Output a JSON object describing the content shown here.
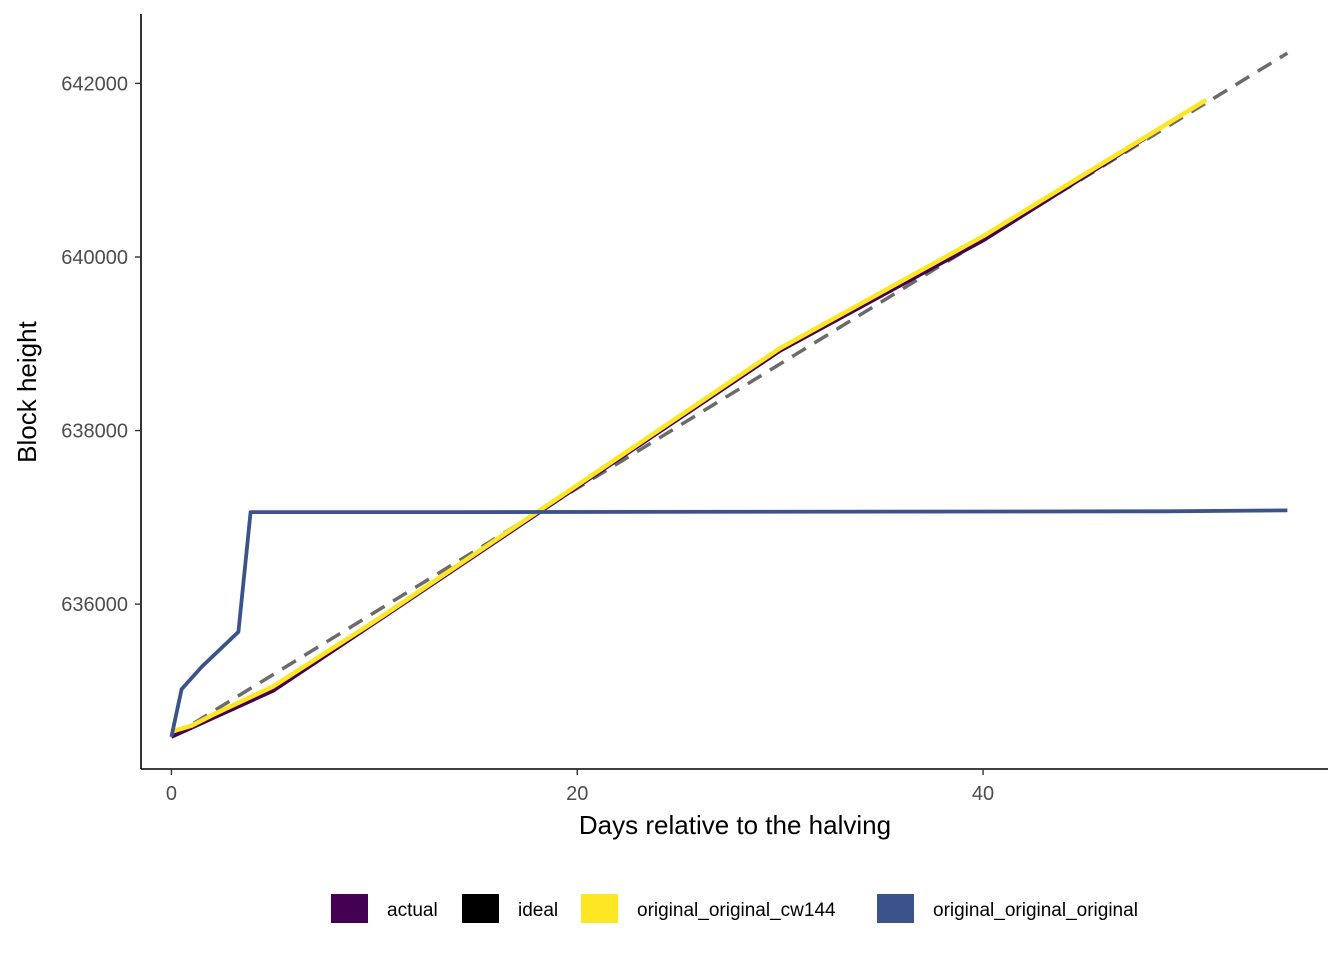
{
  "chart_data": {
    "type": "line",
    "title": "",
    "xlabel": "Days relative to the halving",
    "ylabel": "Block height",
    "xlim": [
      -1.5,
      57
    ],
    "ylim": [
      634100,
      642800
    ],
    "x_ticks": [
      0,
      20,
      40
    ],
    "y_ticks": [
      636000,
      638000,
      640000,
      642000
    ],
    "grid": false,
    "legend_position": "bottom",
    "series": [
      {
        "name": "actual",
        "color": "#440154",
        "dashed": false,
        "x": [
          0,
          5,
          10,
          20,
          30,
          40,
          48
        ],
        "y": [
          634470,
          635000,
          635780,
          637350,
          638920,
          640190,
          641370
        ]
      },
      {
        "name": "ideal",
        "color": "#000000",
        "dashed": true,
        "dash_color": "#6b6b6b",
        "x": [
          0,
          55
        ],
        "y": [
          634470,
          642350
        ]
      },
      {
        "name": "original_original_cw144",
        "color": "#fde725",
        "dashed": false,
        "x": [
          0,
          1,
          2,
          5,
          10,
          20,
          30,
          40,
          51
        ],
        "y": [
          634530,
          634600,
          634720,
          635050,
          635800,
          637370,
          638950,
          640240,
          641810
        ]
      },
      {
        "name": "original_original_original",
        "color": "#3b528b",
        "dashed": false,
        "x": [
          0,
          0.5,
          1.5,
          3.3,
          3.9,
          14,
          49,
          55
        ],
        "y": [
          634470,
          635020,
          635280,
          635680,
          637060,
          637060,
          637070,
          637080
        ]
      }
    ]
  }
}
